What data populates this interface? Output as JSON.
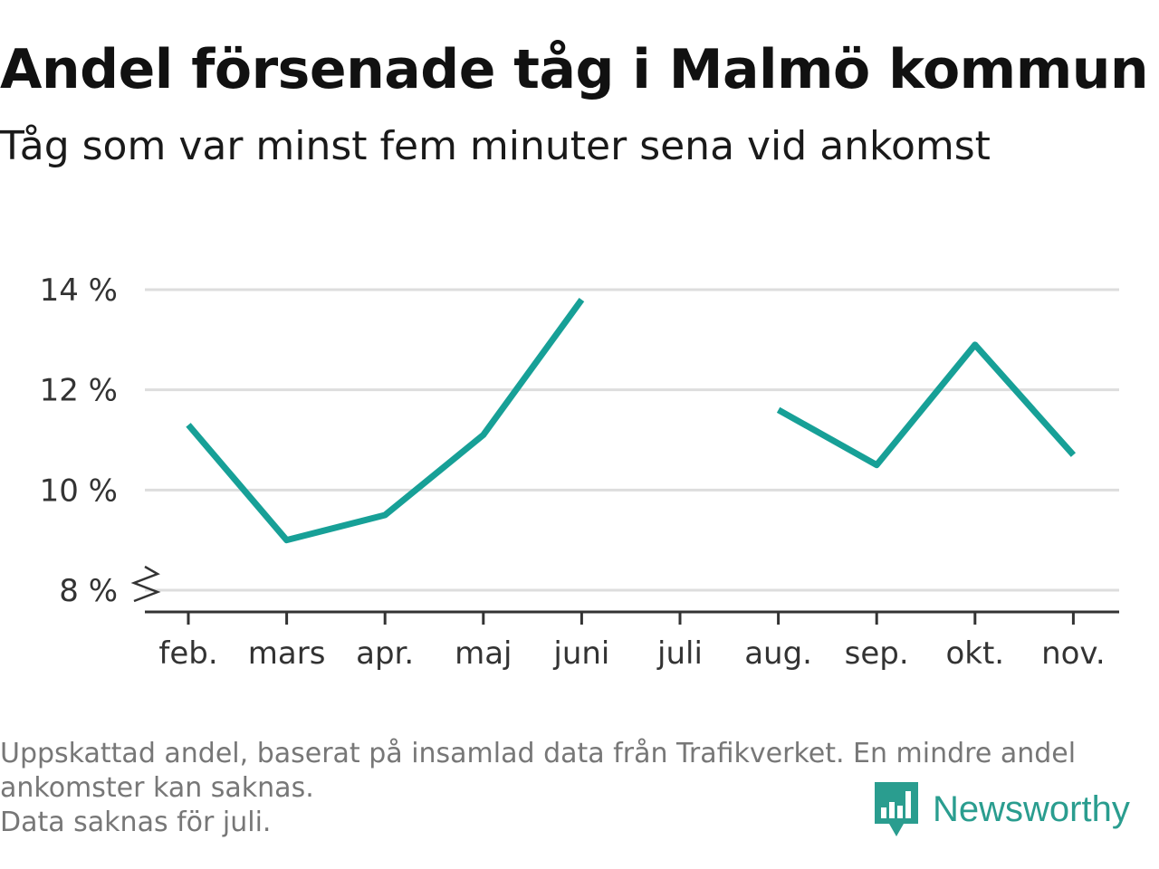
{
  "header": {
    "title": "Andel försenade tåg i Malmö kommun",
    "subtitle": "Tåg som var minst fem minuter sena vid ankomst"
  },
  "chart_data": {
    "type": "line",
    "categories": [
      "feb.",
      "mars",
      "apr.",
      "maj",
      "juni",
      "juli",
      "aug.",
      "sep.",
      "okt.",
      "nov."
    ],
    "series": [
      {
        "values": [
          11.3,
          9.0,
          9.5,
          11.1,
          13.8,
          null,
          11.6,
          10.5,
          12.9,
          10.7
        ],
        "color": "#17a097"
      }
    ],
    "y_ticks": [
      "8 %",
      "10 %",
      "12 %",
      "14 %"
    ],
    "y_tick_values": [
      8,
      10,
      12,
      14
    ],
    "ylim": [
      8,
      14
    ],
    "y_axis_break": true,
    "grid": true,
    "grid_color": "#dddddd",
    "axis_color": "#333333"
  },
  "footer": {
    "notes": [
      "Uppskattad andel, baserat på insamlad data från Trafikverket. En mindre andel",
      "ankomster kan saknas.",
      "Data saknas för juli."
    ],
    "brand": "Newsworthy",
    "brand_color": "#2a9d8f",
    "brand_icon": "bar-chart-speech-bubble-icon"
  }
}
